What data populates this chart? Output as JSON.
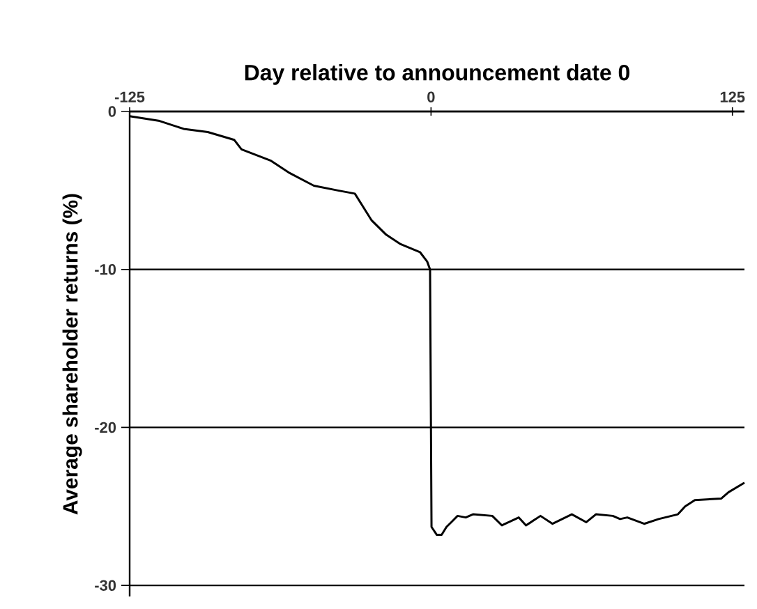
{
  "chart_data": {
    "type": "line",
    "xlabel": "Day relative to announcement date 0",
    "ylabel": "Average shareholder returns (%)",
    "x": [
      -125,
      -112.6,
      -102.6,
      -92.6,
      -81.6,
      -78.6,
      -66.6,
      -58.6,
      -48.6,
      -38.6,
      -31.6,
      -24.6,
      -18.6,
      -12.6,
      -4.6,
      -1.6,
      -0.4,
      0.2,
      2.4,
      4.4,
      6.4,
      8.4,
      11,
      14.4,
      17.4,
      25.4,
      29.4,
      36.4,
      39.4,
      45.4,
      50.4,
      58.4,
      64.4,
      68.4,
      75.4,
      78.4,
      81.4,
      88.4,
      94.4,
      102.4,
      105.4,
      109.4,
      120.4,
      123.4,
      130
    ],
    "series": [
      {
        "color": "#000000",
        "values": [
          -0.3,
          -0.6,
          -1.1,
          -1.3,
          -1.8,
          -2.4,
          -3.1,
          -3.9,
          -4.7,
          -5.0,
          -5.2,
          -6.9,
          -7.8,
          -8.4,
          -8.9,
          -9.5,
          -10,
          -26.3,
          -26.8,
          -26.8,
          -26.3,
          -26.0,
          -25.6,
          -25.7,
          -25.5,
          -25.6,
          -26.2,
          -25.7,
          -26.2,
          -25.6,
          -26.1,
          -25.5,
          -26.0,
          -25.5,
          -25.6,
          -25.8,
          -25.7,
          -26.1,
          -25.8,
          -25.5,
          -25.0,
          -24.6,
          -24.5,
          -24.1,
          -23.5
        ]
      }
    ],
    "xlim": [
      -125,
      130
    ],
    "ylim": [
      -30.7,
      0
    ],
    "xticks": [
      -125,
      0,
      125
    ],
    "yticks": [
      -30,
      -20,
      -10,
      0
    ],
    "grid": "y",
    "marker": "none",
    "line_style": "solid"
  }
}
